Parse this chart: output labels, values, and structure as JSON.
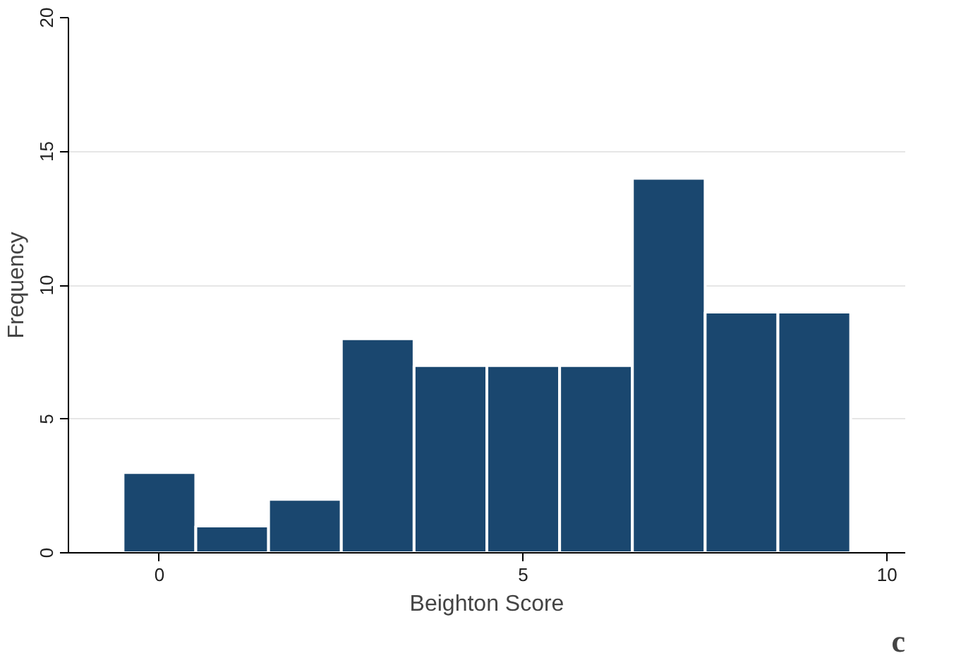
{
  "chart_data": {
    "type": "histogram",
    "xlabel": "Beighton Score",
    "ylabel": "Frequency",
    "bins": [
      -0.5,
      0.5,
      1.5,
      2.5,
      3.5,
      4.5,
      5.5,
      6.5,
      7.5,
      8.5,
      9.5
    ],
    "values": [
      3,
      1,
      2,
      8,
      7,
      7,
      7,
      14,
      9,
      9
    ],
    "color": "#1a476f",
    "xlim": [
      -1.25,
      10.25
    ],
    "ylim": [
      0,
      20
    ],
    "xticks": [
      0,
      5,
      10
    ],
    "yticks": [
      0,
      5,
      10,
      15,
      20
    ],
    "grid": "y",
    "annotations": [
      "c"
    ]
  }
}
